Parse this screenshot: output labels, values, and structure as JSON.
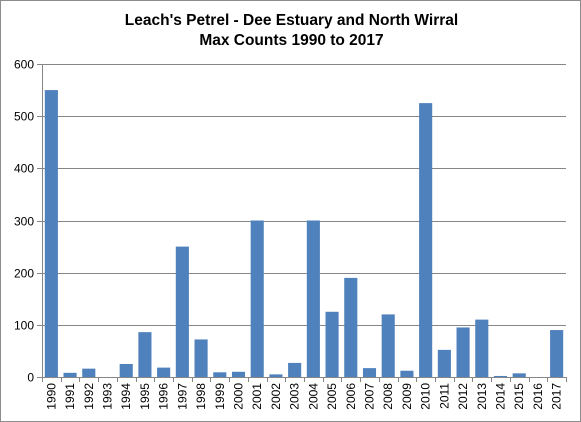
{
  "colors": {
    "bar": "#4f81bd",
    "axis": "#868686",
    "gridline": "#868686",
    "text": "#000000"
  },
  "chart_data": {
    "type": "bar",
    "title_line1": "Leach's Petrel - Dee Estuary and North Wirral",
    "title_line2": "Max Counts 1990 to 2017",
    "xlabel": "",
    "ylabel": "",
    "ylim": [
      0,
      600
    ],
    "yticks": [
      "0",
      "100",
      "200",
      "300",
      "400",
      "500",
      "600"
    ],
    "grid": true,
    "legend": "none",
    "categories": [
      "1990",
      "1991",
      "1992",
      "1993",
      "1994",
      "1995",
      "1996",
      "1997",
      "1998",
      "1999",
      "2000",
      "2001",
      "2002",
      "2003",
      "2004",
      "2005",
      "2006",
      "2007",
      "2008",
      "2009",
      "2010",
      "2011",
      "2012",
      "2013",
      "2014",
      "2015",
      "2016",
      "2017"
    ],
    "values": [
      550,
      8,
      16,
      0,
      25,
      86,
      18,
      250,
      72,
      9,
      10,
      300,
      5,
      27,
      300,
      125,
      190,
      17,
      120,
      12,
      525,
      52,
      95,
      110,
      2,
      7,
      0,
      90
    ]
  }
}
